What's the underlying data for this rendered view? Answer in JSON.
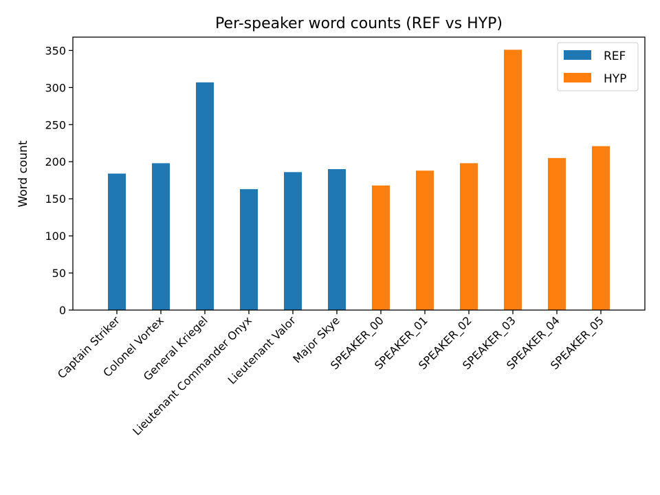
{
  "chart_data": {
    "type": "bar",
    "title": "Per-speaker word counts (REF vs HYP)",
    "xlabel": "",
    "ylabel": "Word count",
    "ylim": [
      0,
      368
    ],
    "yticks": [
      0,
      50,
      100,
      150,
      200,
      250,
      300,
      350
    ],
    "categories": [
      "Captain Striker",
      "Colonel Vortex",
      "General Kriegel",
      "Lieutenant Commander Onyx",
      "Lieutenant Valor",
      "Major Skye",
      "SPEAKER_00",
      "SPEAKER_01",
      "SPEAKER_02",
      "SPEAKER_03",
      "SPEAKER_04",
      "SPEAKER_05"
    ],
    "series": [
      {
        "name": "REF",
        "color": "#1f77b4",
        "values": [
          184,
          198,
          307,
          163,
          186,
          190,
          null,
          null,
          null,
          null,
          null,
          null
        ]
      },
      {
        "name": "HYP",
        "color": "#ff7f0e",
        "values": [
          null,
          null,
          null,
          null,
          null,
          null,
          168,
          188,
          198,
          351,
          205,
          221
        ]
      }
    ],
    "legend": "top-right",
    "grid": false
  }
}
